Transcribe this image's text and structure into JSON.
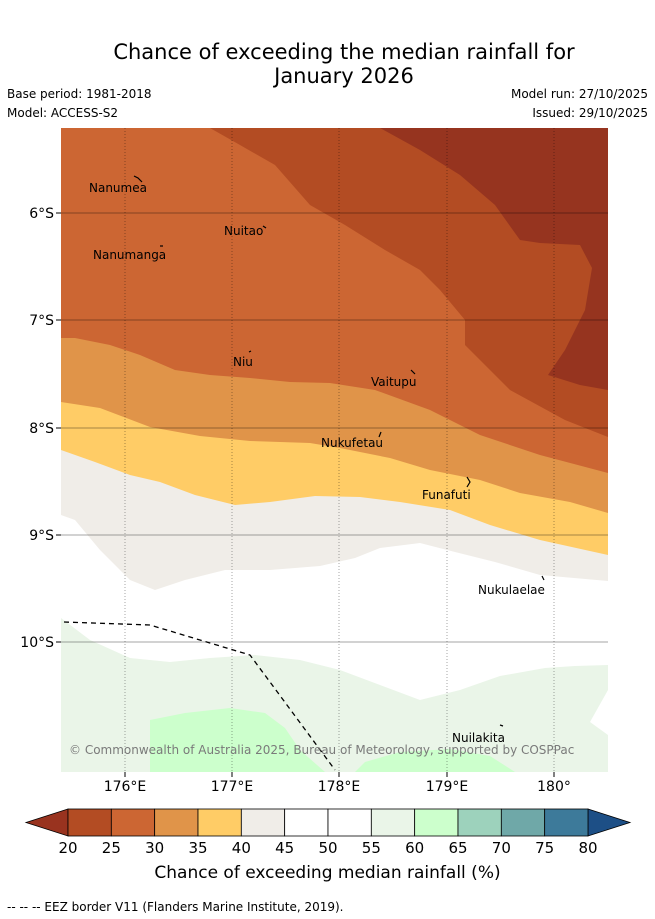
{
  "title_line1": "Chance of exceeding the median rainfall for",
  "title_line2": "January 2026",
  "base_period": "Base period: 1981-2018",
  "model": "Model: ACCESS-S2",
  "model_run": "Model run: 27/10/2025",
  "issued": "Issued: 29/10/2025",
  "copyright": "© Commonwealth of Australia 2025, Bureau of Meteorology, supported by COSPPac",
  "lat_labels": [
    "6°S",
    "7°S",
    "8°S",
    "9°S",
    "10°S"
  ],
  "lon_labels": [
    "176°E",
    "177°E",
    "178°E",
    "179°E",
    "180°"
  ],
  "places": [
    "Nanumea",
    "Nuitao",
    "Nanumanga",
    "Niu",
    "Vaitupu",
    "Nukufetau",
    "Funafuti",
    "Nukulaelae",
    "Nuilakita"
  ],
  "colorbar": {
    "title": "Chance of exceeding median rainfall (%)",
    "ticks": [
      "20",
      "25",
      "30",
      "35",
      "40",
      "45",
      "50",
      "55",
      "60",
      "65",
      "70",
      "75",
      "80"
    ],
    "colors": [
      "#b34c23",
      "#cc6633",
      "#e09449",
      "#ffcc66",
      "#f0ede8",
      "#ffffff",
      "#ffffff",
      "#eaf5e8",
      "#ccffcc",
      "#9dd2bc",
      "#6fa8a8",
      "#3d7a9a"
    ],
    "under_color": "#99331f",
    "over_color": "#1d4f86"
  },
  "colors": {
    "c15": "#96341f",
    "c20": "#b34c23",
    "c25": "#cc6633",
    "c30": "#e09449",
    "c35": "#ffcc66",
    "c40": "#f0ede8",
    "c45": "#ffffff",
    "c55": "#eaf5e8",
    "c60": "#ccffcc"
  },
  "footer": "--  --  -- EEZ border V11 (Flanders Marine Institute, 2019)."
}
